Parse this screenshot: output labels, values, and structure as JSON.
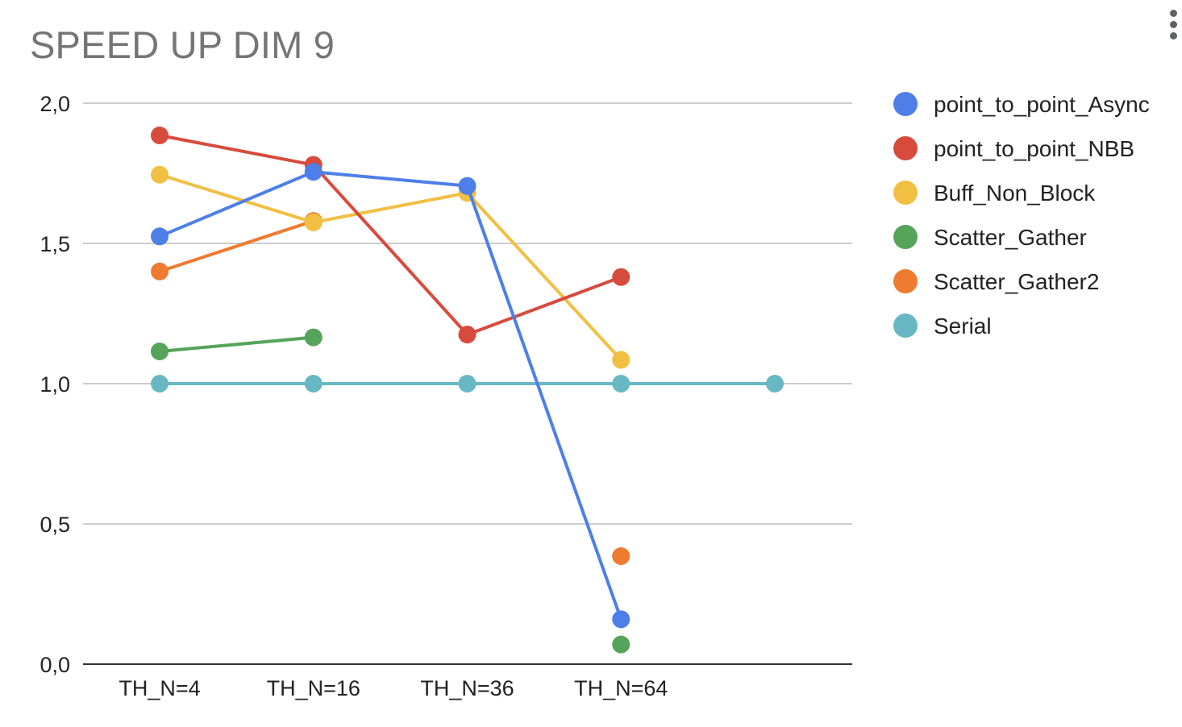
{
  "chart_data": {
    "type": "line",
    "title": "SPEED UP DIM 9",
    "xlabel": "",
    "ylabel": "",
    "categories": [
      "TH_N=4",
      "TH_N=16",
      "TH_N=36",
      "TH_N=64",
      ""
    ],
    "ylim": [
      0,
      2
    ],
    "y_ticks": [
      0.0,
      0.5,
      1.0,
      1.5,
      2.0
    ],
    "y_tick_labels": [
      "0,0",
      "0,5",
      "1,0",
      "1,5",
      "2,0"
    ],
    "grid": true,
    "legend_position": "right",
    "series": [
      {
        "name": "point_to_point_Async",
        "color": "#4e7fe8",
        "values": [
          1.525,
          1.755,
          1.705,
          0.16,
          null
        ]
      },
      {
        "name": "point_to_point_NBB",
        "color": "#d74b3c",
        "values": [
          1.885,
          1.78,
          1.175,
          1.38,
          null
        ]
      },
      {
        "name": "Buff_Non_Block",
        "color": "#f1bf42",
        "values": [
          1.745,
          1.575,
          1.68,
          1.085,
          null
        ]
      },
      {
        "name": "Scatter_Gather",
        "color": "#55a45a",
        "values": [
          1.115,
          1.165,
          null,
          0.07,
          null
        ]
      },
      {
        "name": "Scatter_Gather2",
        "color": "#ef7b31",
        "values": [
          1.4,
          1.58,
          null,
          0.385,
          null
        ]
      },
      {
        "name": "Serial",
        "color": "#68b8c4",
        "values": [
          1.0,
          1.0,
          1.0,
          1.0,
          1.0
        ]
      }
    ]
  },
  "menu": {
    "icon": "more-vert-icon"
  }
}
